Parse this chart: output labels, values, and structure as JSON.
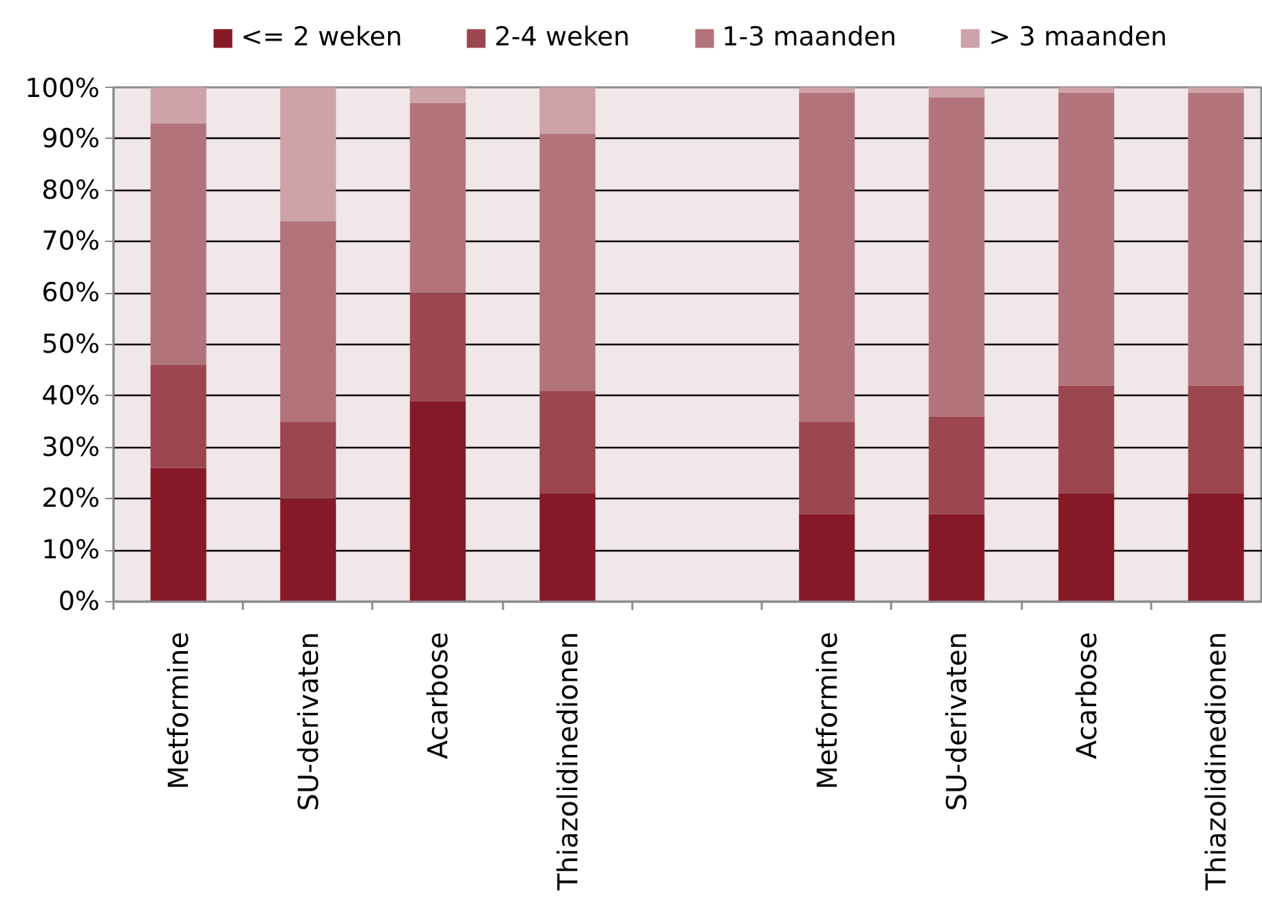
{
  "chart_data": {
    "type": "bar",
    "stacked": true,
    "categories": [
      "Metformine",
      "SU-derivaten",
      "Acarbose",
      "Thiazolidinedionen",
      null,
      "Metformine",
      "SU-derivaten",
      "Acarbose",
      "Thiazolidinedionen"
    ],
    "series": [
      {
        "name": "<= 2 weken",
        "color": "#851927",
        "values": [
          26,
          20,
          39,
          21,
          null,
          17,
          17,
          21,
          21
        ]
      },
      {
        "name": "2-4 weken",
        "color": "#9c4750",
        "values": [
          20,
          15,
          21,
          20,
          null,
          18,
          19,
          21,
          21
        ]
      },
      {
        "name": "1-3 maanden",
        "color": "#b3737a",
        "values": [
          47,
          39,
          37,
          50,
          null,
          64,
          62,
          57,
          57
        ]
      },
      {
        "name": "> 3 maanden",
        "color": "#cda2a8",
        "values": [
          7,
          26,
          3,
          9,
          null,
          1,
          2,
          1,
          1
        ]
      }
    ],
    "ylim": [
      0,
      100
    ],
    "yticks": [
      {
        "value": 0,
        "label": "0%"
      },
      {
        "value": 10,
        "label": "10%"
      },
      {
        "value": 20,
        "label": "20%"
      },
      {
        "value": 30,
        "label": "30%"
      },
      {
        "value": 40,
        "label": "40%"
      },
      {
        "value": 50,
        "label": "50%"
      },
      {
        "value": 60,
        "label": "60%"
      },
      {
        "value": 70,
        "label": "70%"
      },
      {
        "value": 80,
        "label": "80%"
      },
      {
        "value": 90,
        "label": "90%"
      },
      {
        "value": 100,
        "label": "100%"
      }
    ],
    "grid": "y",
    "legend": "top"
  }
}
